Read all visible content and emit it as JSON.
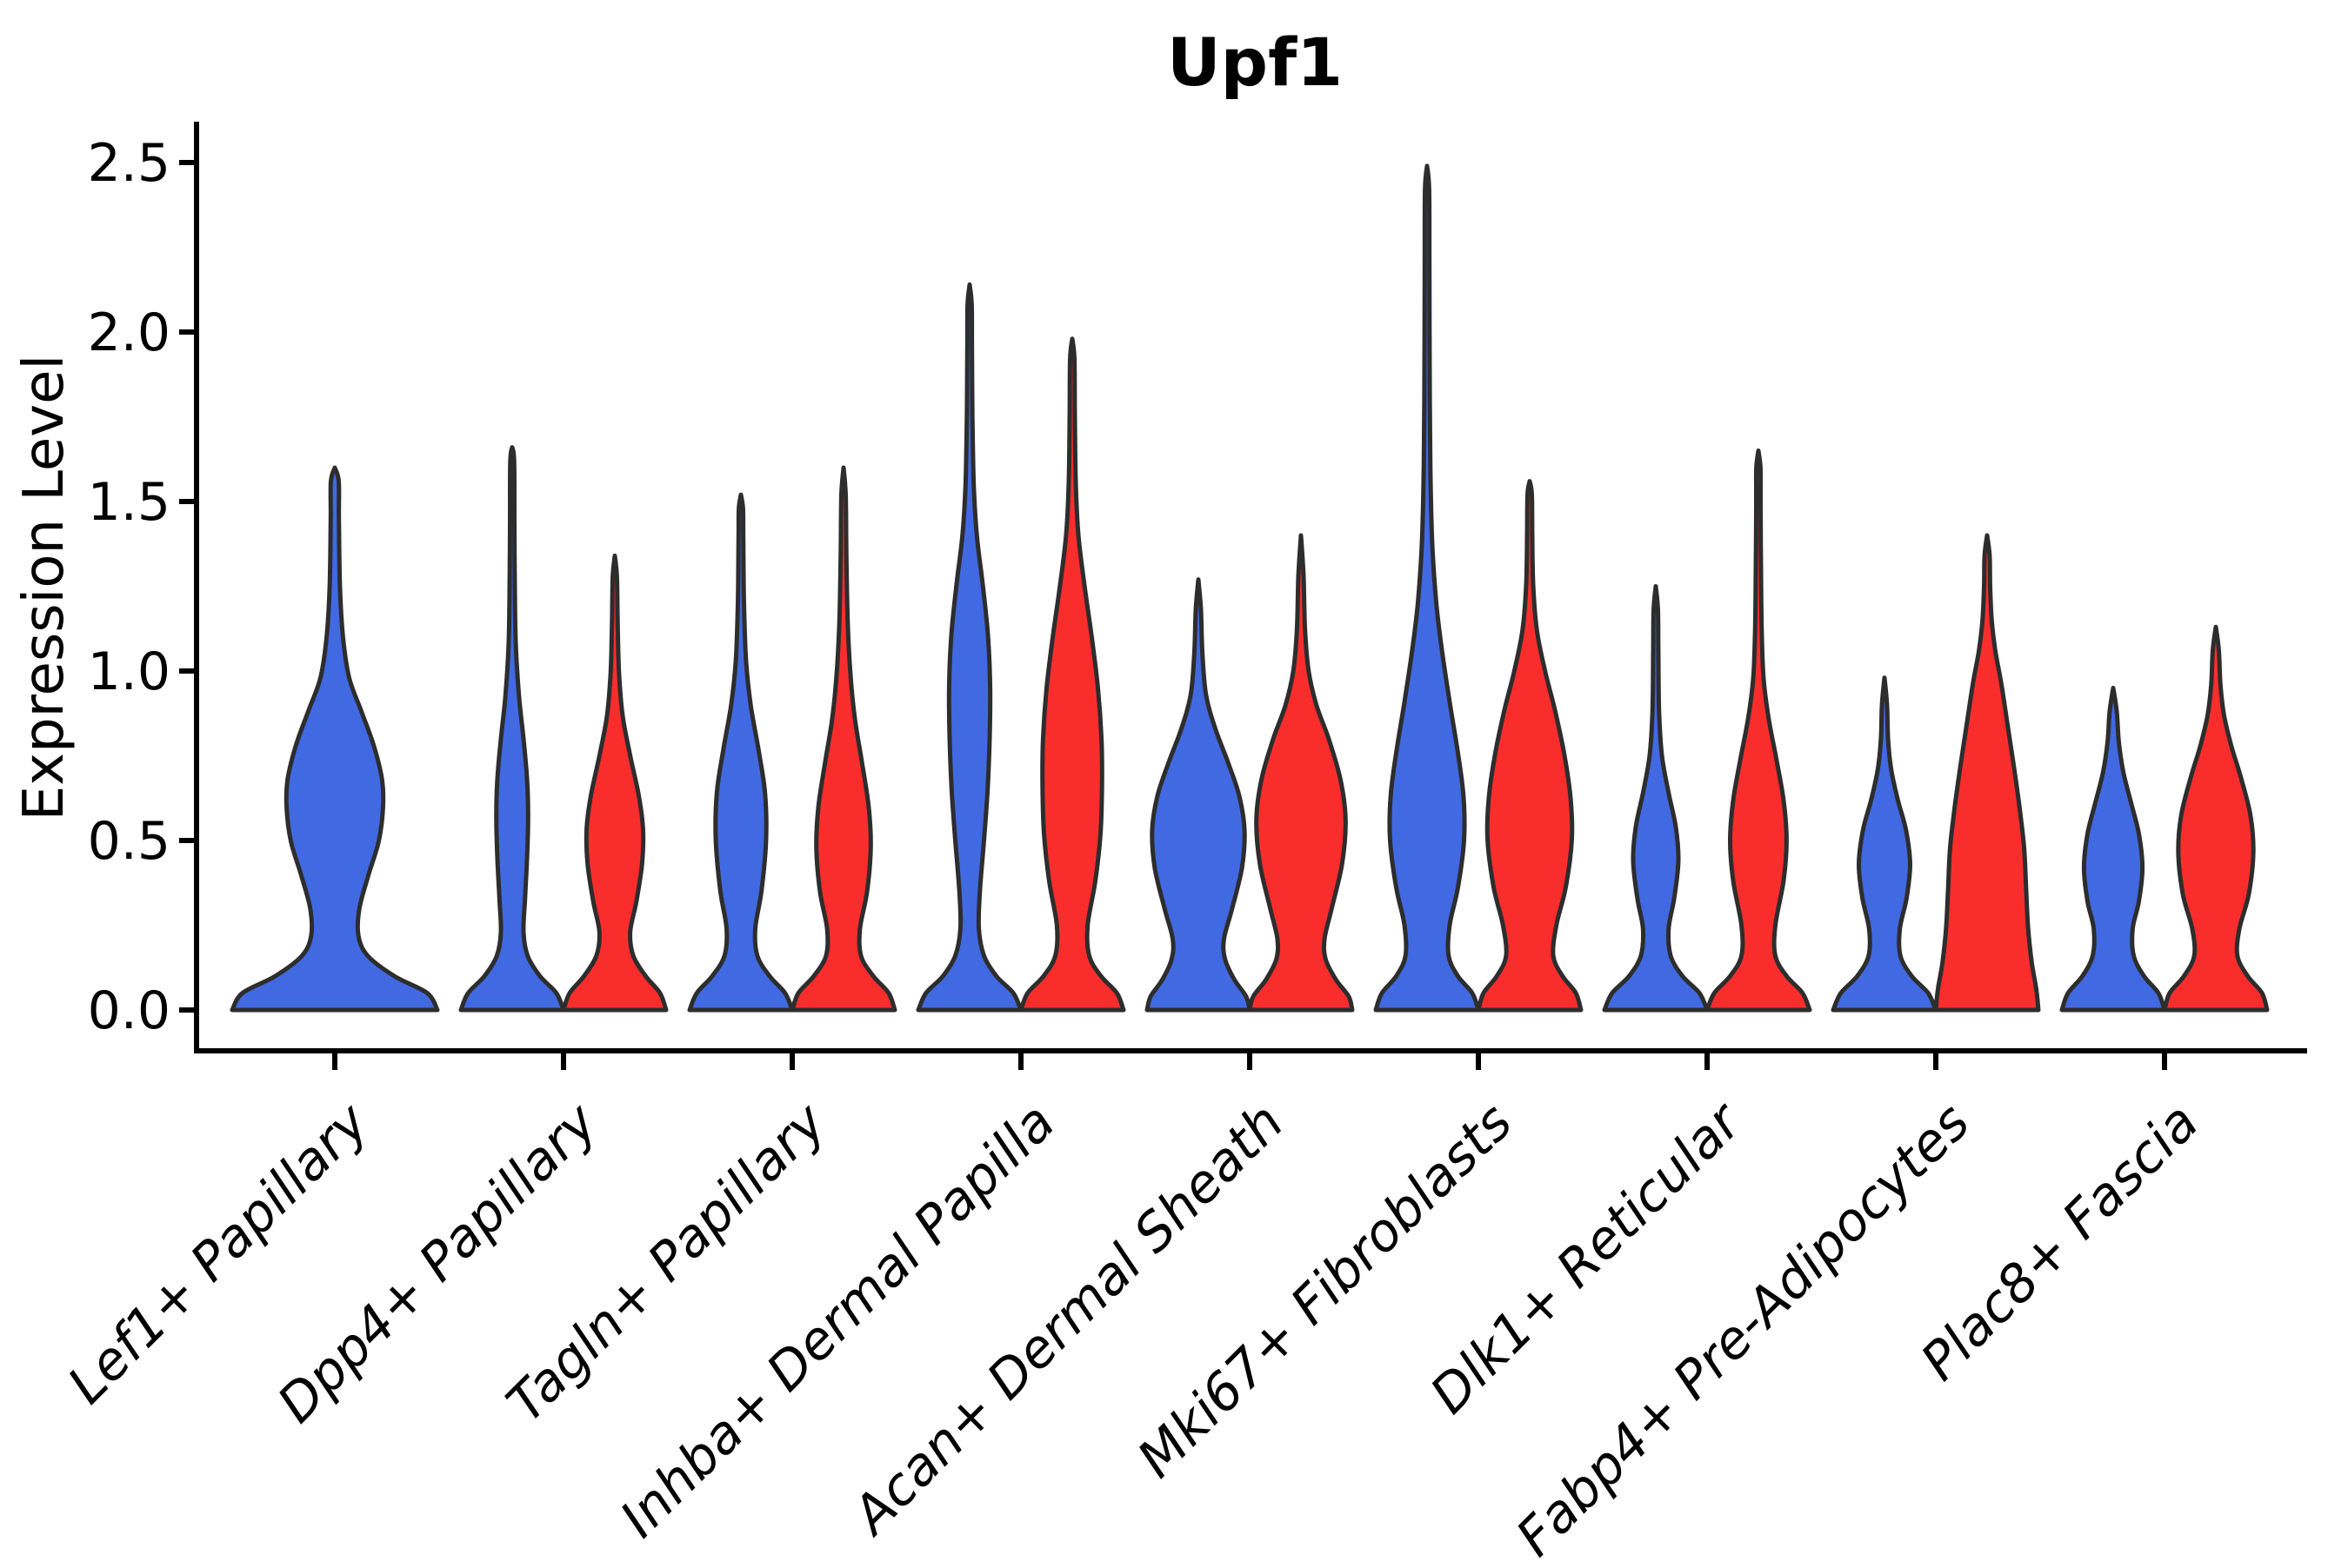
{
  "chart_data": {
    "type": "violin",
    "title": "Upf1",
    "xlabel": "",
    "ylabel": "Expression Level",
    "yticks": [
      0.0,
      0.5,
      1.0,
      1.5,
      2.0,
      2.5
    ],
    "ytick_labels": [
      "0.0",
      "0.5",
      "1.0",
      "1.5",
      "2.0",
      "2.5"
    ],
    "ylim": [
      -0.12,
      2.62
    ],
    "grid": false,
    "legend_position": "none",
    "background_color": "#ffffff",
    "axis_color": "#000000",
    "outline_color": "#2d2d2d",
    "categories": [
      "Lef1+ Papillary",
      "Dpp4+ Papillary",
      "Tagln+ Papillary",
      "Inhba+ Dermal Papilla",
      "Acan+ Dermal Sheath",
      "Mki67+ Fibroblasts",
      "Dlk1+ Reticular",
      "Fabp4+ Pre-Adipocytes",
      "Plac8+ Fascia"
    ],
    "series": [
      {
        "name": "blue",
        "color": "#4169E1"
      },
      {
        "name": "red",
        "color": "#FA2D2D"
      }
    ],
    "violins": [
      {
        "category": 0,
        "series": "blue",
        "full_width": true,
        "max_value": 1.6,
        "profile": [
          [
            0,
            1
          ],
          [
            0.05,
            0.9
          ],
          [
            0.1,
            0.58
          ],
          [
            0.16,
            0.32
          ],
          [
            0.22,
            0.23
          ],
          [
            0.3,
            0.24
          ],
          [
            0.4,
            0.33
          ],
          [
            0.5,
            0.43
          ],
          [
            0.6,
            0.47
          ],
          [
            0.68,
            0.46
          ],
          [
            0.78,
            0.38
          ],
          [
            0.88,
            0.26
          ],
          [
            0.98,
            0.14
          ],
          [
            1.1,
            0.08
          ],
          [
            1.25,
            0.05
          ],
          [
            1.45,
            0.04
          ],
          [
            1.56,
            0.038
          ],
          [
            1.6,
            0
          ]
        ]
      },
      {
        "category": 1,
        "series": "blue",
        "full_width": false,
        "max_value": 1.66,
        "profile": [
          [
            0,
            1
          ],
          [
            0.05,
            0.86
          ],
          [
            0.1,
            0.54
          ],
          [
            0.16,
            0.3
          ],
          [
            0.23,
            0.22
          ],
          [
            0.33,
            0.25
          ],
          [
            0.45,
            0.29
          ],
          [
            0.57,
            0.31
          ],
          [
            0.68,
            0.29
          ],
          [
            0.8,
            0.22
          ],
          [
            0.93,
            0.13
          ],
          [
            1.08,
            0.07
          ],
          [
            1.25,
            0.05
          ],
          [
            1.45,
            0.042
          ],
          [
            1.62,
            0.038
          ],
          [
            1.66,
            0
          ]
        ]
      },
      {
        "category": 1,
        "series": "red",
        "full_width": false,
        "max_value": 1.34,
        "profile": [
          [
            0,
            1
          ],
          [
            0.05,
            0.88
          ],
          [
            0.1,
            0.6
          ],
          [
            0.16,
            0.36
          ],
          [
            0.23,
            0.3
          ],
          [
            0.32,
            0.42
          ],
          [
            0.43,
            0.53
          ],
          [
            0.53,
            0.55
          ],
          [
            0.63,
            0.47
          ],
          [
            0.75,
            0.3
          ],
          [
            0.87,
            0.15
          ],
          [
            1.0,
            0.08
          ],
          [
            1.15,
            0.055
          ],
          [
            1.28,
            0.04
          ],
          [
            1.34,
            0
          ]
        ]
      },
      {
        "category": 2,
        "series": "blue",
        "full_width": false,
        "max_value": 1.52,
        "profile": [
          [
            0,
            1
          ],
          [
            0.05,
            0.86
          ],
          [
            0.1,
            0.56
          ],
          [
            0.16,
            0.32
          ],
          [
            0.24,
            0.28
          ],
          [
            0.35,
            0.4
          ],
          [
            0.5,
            0.49
          ],
          [
            0.64,
            0.47
          ],
          [
            0.77,
            0.34
          ],
          [
            0.9,
            0.19
          ],
          [
            1.03,
            0.1
          ],
          [
            1.2,
            0.06
          ],
          [
            1.4,
            0.045
          ],
          [
            1.48,
            0.04
          ],
          [
            1.52,
            0
          ]
        ]
      },
      {
        "category": 2,
        "series": "red",
        "full_width": false,
        "max_value": 1.6,
        "profile": [
          [
            0,
            1
          ],
          [
            0.05,
            0.88
          ],
          [
            0.1,
            0.58
          ],
          [
            0.16,
            0.34
          ],
          [
            0.24,
            0.32
          ],
          [
            0.35,
            0.46
          ],
          [
            0.48,
            0.53
          ],
          [
            0.6,
            0.49
          ],
          [
            0.73,
            0.36
          ],
          [
            0.86,
            0.22
          ],
          [
            1.0,
            0.13
          ],
          [
            1.15,
            0.08
          ],
          [
            1.35,
            0.055
          ],
          [
            1.52,
            0.042
          ],
          [
            1.6,
            0
          ]
        ]
      },
      {
        "category": 3,
        "series": "blue",
        "full_width": false,
        "max_value": 2.14,
        "profile": [
          [
            0,
            1
          ],
          [
            0.05,
            0.85
          ],
          [
            0.1,
            0.52
          ],
          [
            0.16,
            0.28
          ],
          [
            0.24,
            0.18
          ],
          [
            0.35,
            0.2
          ],
          [
            0.5,
            0.28
          ],
          [
            0.65,
            0.35
          ],
          [
            0.8,
            0.39
          ],
          [
            0.95,
            0.4
          ],
          [
            1.1,
            0.36
          ],
          [
            1.25,
            0.26
          ],
          [
            1.4,
            0.14
          ],
          [
            1.55,
            0.08
          ],
          [
            1.75,
            0.055
          ],
          [
            1.95,
            0.045
          ],
          [
            2.08,
            0.04
          ],
          [
            2.14,
            0
          ]
        ]
      },
      {
        "category": 3,
        "series": "red",
        "full_width": false,
        "max_value": 1.98,
        "profile": [
          [
            0,
            1
          ],
          [
            0.05,
            0.87
          ],
          [
            0.1,
            0.56
          ],
          [
            0.16,
            0.33
          ],
          [
            0.25,
            0.3
          ],
          [
            0.38,
            0.45
          ],
          [
            0.52,
            0.55
          ],
          [
            0.66,
            0.58
          ],
          [
            0.8,
            0.57
          ],
          [
            0.95,
            0.5
          ],
          [
            1.1,
            0.38
          ],
          [
            1.25,
            0.24
          ],
          [
            1.4,
            0.12
          ],
          [
            1.55,
            0.07
          ],
          [
            1.75,
            0.05
          ],
          [
            1.92,
            0.042
          ],
          [
            1.98,
            0
          ]
        ]
      },
      {
        "category": 4,
        "series": "blue",
        "full_width": false,
        "max_value": 1.27,
        "profile": [
          [
            0,
            1
          ],
          [
            0.04,
            0.93
          ],
          [
            0.09,
            0.7
          ],
          [
            0.15,
            0.52
          ],
          [
            0.21,
            0.5
          ],
          [
            0.3,
            0.66
          ],
          [
            0.42,
            0.85
          ],
          [
            0.53,
            0.9
          ],
          [
            0.63,
            0.8
          ],
          [
            0.73,
            0.58
          ],
          [
            0.83,
            0.33
          ],
          [
            0.93,
            0.15
          ],
          [
            1.05,
            0.08
          ],
          [
            1.18,
            0.05
          ],
          [
            1.27,
            0
          ]
        ]
      },
      {
        "category": 4,
        "series": "red",
        "full_width": false,
        "max_value": 1.4,
        "profile": [
          [
            0,
            1
          ],
          [
            0.04,
            0.93
          ],
          [
            0.09,
            0.68
          ],
          [
            0.15,
            0.48
          ],
          [
            0.21,
            0.46
          ],
          [
            0.3,
            0.6
          ],
          [
            0.43,
            0.8
          ],
          [
            0.56,
            0.87
          ],
          [
            0.68,
            0.77
          ],
          [
            0.8,
            0.54
          ],
          [
            0.9,
            0.3
          ],
          [
            1.0,
            0.15
          ],
          [
            1.12,
            0.08
          ],
          [
            1.28,
            0.05
          ],
          [
            1.4,
            0
          ]
        ]
      },
      {
        "category": 5,
        "series": "blue",
        "full_width": false,
        "max_value": 2.49,
        "profile": [
          [
            0,
            1
          ],
          [
            0.05,
            0.88
          ],
          [
            0.1,
            0.6
          ],
          [
            0.16,
            0.42
          ],
          [
            0.25,
            0.44
          ],
          [
            0.36,
            0.6
          ],
          [
            0.5,
            0.72
          ],
          [
            0.63,
            0.71
          ],
          [
            0.76,
            0.6
          ],
          [
            0.9,
            0.45
          ],
          [
            1.05,
            0.3
          ],
          [
            1.2,
            0.18
          ],
          [
            1.38,
            0.1
          ],
          [
            1.6,
            0.065
          ],
          [
            1.9,
            0.05
          ],
          [
            2.2,
            0.045
          ],
          [
            2.42,
            0.04
          ],
          [
            2.49,
            0
          ]
        ]
      },
      {
        "category": 5,
        "series": "red",
        "full_width": false,
        "max_value": 1.56,
        "profile": [
          [
            0,
            1
          ],
          [
            0.05,
            0.9
          ],
          [
            0.1,
            0.64
          ],
          [
            0.16,
            0.46
          ],
          [
            0.25,
            0.52
          ],
          [
            0.36,
            0.7
          ],
          [
            0.5,
            0.82
          ],
          [
            0.62,
            0.8
          ],
          [
            0.75,
            0.68
          ],
          [
            0.88,
            0.5
          ],
          [
            1.0,
            0.3
          ],
          [
            1.12,
            0.14
          ],
          [
            1.25,
            0.07
          ],
          [
            1.4,
            0.05
          ],
          [
            1.52,
            0.042
          ],
          [
            1.56,
            0
          ]
        ]
      },
      {
        "category": 6,
        "series": "blue",
        "full_width": false,
        "max_value": 1.25,
        "profile": [
          [
            0,
            1
          ],
          [
            0.05,
            0.85
          ],
          [
            0.1,
            0.52
          ],
          [
            0.16,
            0.29
          ],
          [
            0.24,
            0.25
          ],
          [
            0.33,
            0.36
          ],
          [
            0.44,
            0.44
          ],
          [
            0.54,
            0.39
          ],
          [
            0.64,
            0.25
          ],
          [
            0.75,
            0.12
          ],
          [
            0.88,
            0.065
          ],
          [
            1.05,
            0.05
          ],
          [
            1.18,
            0.042
          ],
          [
            1.25,
            0
          ]
        ]
      },
      {
        "category": 6,
        "series": "red",
        "full_width": false,
        "max_value": 1.65,
        "profile": [
          [
            0,
            1
          ],
          [
            0.05,
            0.86
          ],
          [
            0.1,
            0.55
          ],
          [
            0.16,
            0.33
          ],
          [
            0.25,
            0.33
          ],
          [
            0.38,
            0.49
          ],
          [
            0.5,
            0.55
          ],
          [
            0.62,
            0.49
          ],
          [
            0.74,
            0.35
          ],
          [
            0.86,
            0.2
          ],
          [
            0.98,
            0.1
          ],
          [
            1.12,
            0.065
          ],
          [
            1.3,
            0.05
          ],
          [
            1.5,
            0.042
          ],
          [
            1.6,
            0.04
          ],
          [
            1.65,
            0
          ]
        ]
      },
      {
        "category": 7,
        "series": "blue",
        "full_width": false,
        "max_value": 0.98,
        "profile": [
          [
            0,
            1
          ],
          [
            0.05,
            0.85
          ],
          [
            0.1,
            0.53
          ],
          [
            0.16,
            0.31
          ],
          [
            0.24,
            0.3
          ],
          [
            0.33,
            0.43
          ],
          [
            0.43,
            0.5
          ],
          [
            0.53,
            0.42
          ],
          [
            0.62,
            0.26
          ],
          [
            0.71,
            0.13
          ],
          [
            0.8,
            0.07
          ],
          [
            0.9,
            0.05
          ],
          [
            0.98,
            0
          ]
        ]
      },
      {
        "category": 7,
        "series": "red",
        "full_width": false,
        "max_value": 1.4,
        "profile": [
          [
            0,
            1
          ],
          [
            0.06,
            0.96
          ],
          [
            0.14,
            0.87
          ],
          [
            0.24,
            0.8
          ],
          [
            0.36,
            0.76
          ],
          [
            0.48,
            0.72
          ],
          [
            0.6,
            0.63
          ],
          [
            0.72,
            0.52
          ],
          [
            0.84,
            0.4
          ],
          [
            0.96,
            0.28
          ],
          [
            1.06,
            0.16
          ],
          [
            1.15,
            0.09
          ],
          [
            1.25,
            0.06
          ],
          [
            1.34,
            0.05
          ],
          [
            1.4,
            0
          ]
        ]
      },
      {
        "category": 8,
        "series": "blue",
        "full_width": false,
        "max_value": 0.95,
        "profile": [
          [
            0,
            1
          ],
          [
            0.05,
            0.88
          ],
          [
            0.1,
            0.6
          ],
          [
            0.16,
            0.4
          ],
          [
            0.24,
            0.38
          ],
          [
            0.32,
            0.5
          ],
          [
            0.42,
            0.57
          ],
          [
            0.52,
            0.5
          ],
          [
            0.61,
            0.35
          ],
          [
            0.7,
            0.2
          ],
          [
            0.79,
            0.11
          ],
          [
            0.88,
            0.07
          ],
          [
            0.95,
            0
          ]
        ]
      },
      {
        "category": 8,
        "series": "red",
        "full_width": false,
        "max_value": 1.13,
        "profile": [
          [
            0,
            1
          ],
          [
            0.05,
            0.9
          ],
          [
            0.1,
            0.62
          ],
          [
            0.16,
            0.42
          ],
          [
            0.24,
            0.46
          ],
          [
            0.34,
            0.64
          ],
          [
            0.46,
            0.73
          ],
          [
            0.57,
            0.68
          ],
          [
            0.68,
            0.5
          ],
          [
            0.78,
            0.3
          ],
          [
            0.87,
            0.16
          ],
          [
            0.96,
            0.09
          ],
          [
            1.06,
            0.06
          ],
          [
            1.13,
            0
          ]
        ]
      }
    ]
  }
}
